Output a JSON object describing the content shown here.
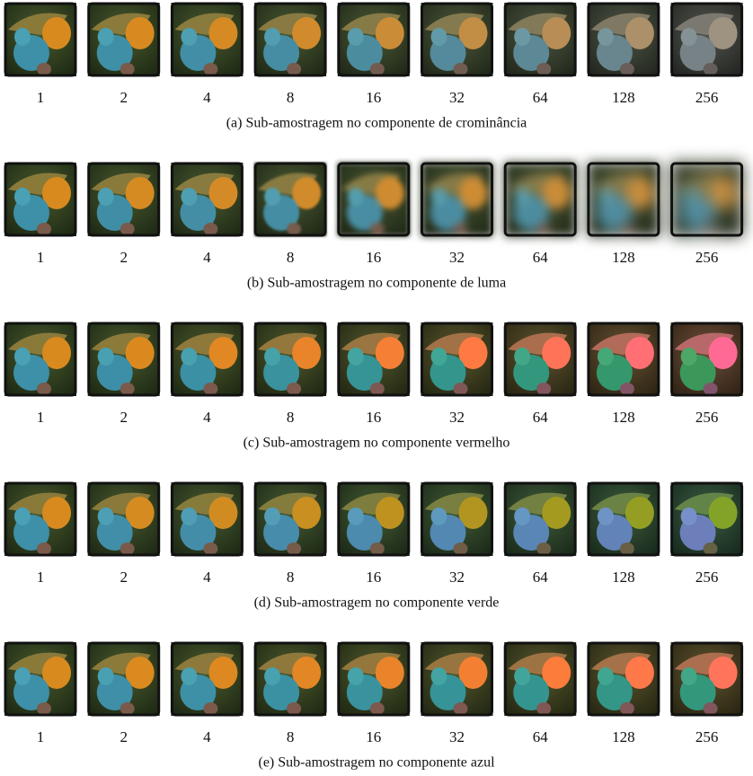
{
  "figures": [
    {
      "caption": "(a) Sub-amostragem no componente de crominância",
      "labels": [
        "1",
        "2",
        "4",
        "8",
        "16",
        "32",
        "64",
        "128",
        "256"
      ]
    },
    {
      "caption": "(b) Sub-amostragem no componente de luma",
      "labels": [
        "1",
        "2",
        "4",
        "8",
        "16",
        "32",
        "64",
        "128",
        "256"
      ]
    },
    {
      "caption": "(c) Sub-amostragem no componente vermelho",
      "labels": [
        "1",
        "2",
        "4",
        "8",
        "16",
        "32",
        "64",
        "128",
        "256"
      ]
    },
    {
      "caption": "(d) Sub-amostragem no componente verde",
      "labels": [
        "1",
        "2",
        "4",
        "8",
        "16",
        "32",
        "64",
        "128",
        "256"
      ]
    },
    {
      "caption": "(e) Sub-amostragem no componente azul",
      "labels": [
        "1",
        "2",
        "4",
        "8",
        "16",
        "32",
        "64",
        "128",
        "256"
      ]
    }
  ]
}
